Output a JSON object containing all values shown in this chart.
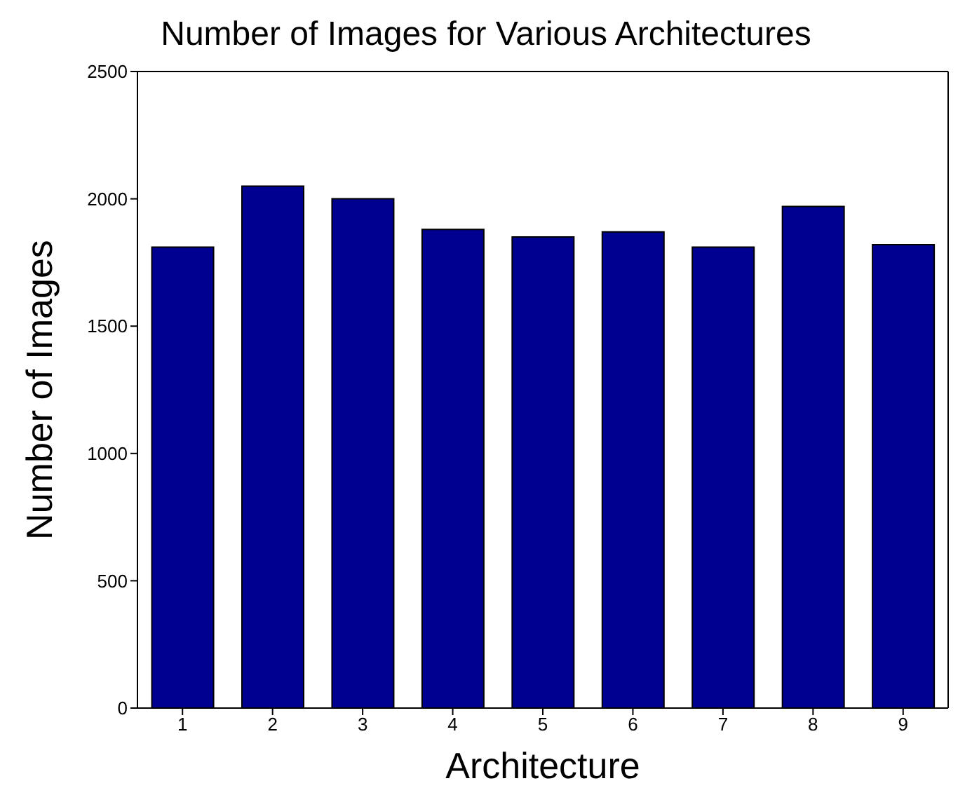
{
  "chart_data": {
    "type": "bar",
    "title": "Number of Images for Various Architectures",
    "xlabel": "Architecture",
    "ylabel": "Number of Images",
    "categories": [
      "1",
      "2",
      "3",
      "4",
      "5",
      "6",
      "7",
      "8",
      "9"
    ],
    "values": [
      1810,
      2050,
      2000,
      1880,
      1850,
      1870,
      1810,
      1970,
      1820
    ],
    "color": "#000090",
    "ylim": [
      0,
      2500
    ],
    "yticks": [
      0,
      500,
      1000,
      1500,
      2000,
      2500
    ],
    "grid": false,
    "legend": false
  }
}
